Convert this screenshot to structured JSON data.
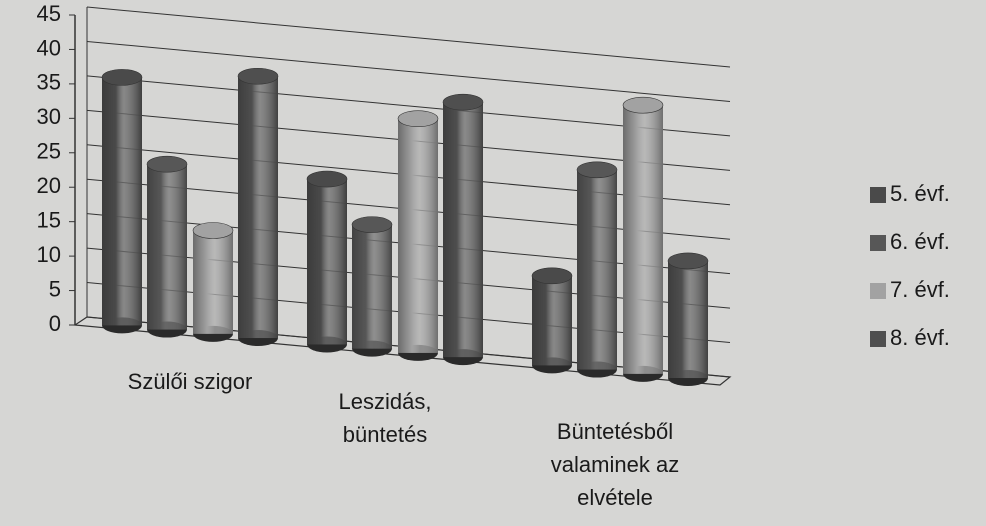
{
  "chart_data": {
    "type": "bar3d",
    "categories": [
      "Szülői szigor",
      "Leszidás, büntetés",
      "Büntetésből valaminek az elvétele"
    ],
    "series": [
      {
        "name": "5. évf.",
        "color": "#4a4a4a",
        "values": [
          36,
          24,
          13
        ]
      },
      {
        "name": "6. évf.",
        "color": "#575757",
        "values": [
          24,
          18,
          29
        ]
      },
      {
        "name": "7. évf.",
        "color": "#a2a2a2",
        "values": [
          15,
          34,
          39
        ]
      },
      {
        "name": "8. évf.",
        "color": "#4f4f4f",
        "values": [
          38,
          37,
          17
        ]
      }
    ],
    "ylim": [
      0,
      45
    ],
    "yticks": [
      0,
      5,
      10,
      15,
      20,
      25,
      30,
      35,
      40,
      45
    ],
    "grid": true,
    "legend": "right"
  }
}
